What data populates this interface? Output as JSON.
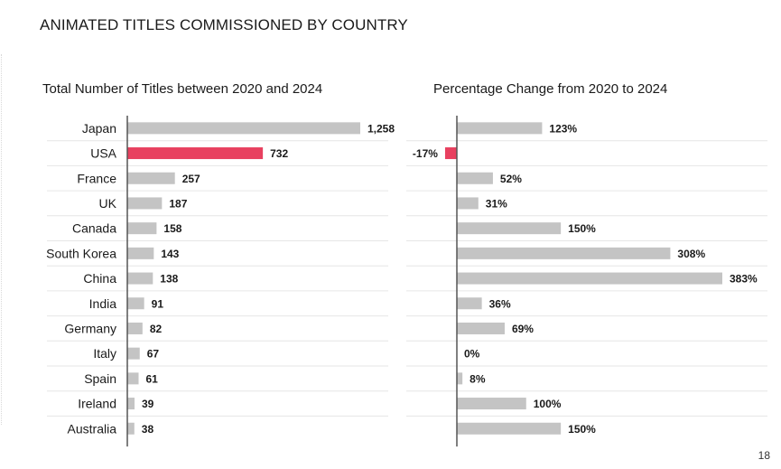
{
  "title": "ANIMATED TITLES COMMISSIONED BY COUNTRY",
  "page_number": "18",
  "colors": {
    "bar": "#c4c4c4",
    "highlight": "#e8405f",
    "axis": "#555555",
    "grid": "#e6e6e6"
  },
  "chart_data": [
    {
      "type": "bar",
      "orientation": "horizontal",
      "title": "Total Number of Titles between 2020 and 2024",
      "categories": [
        "Japan",
        "USA",
        "France",
        "UK",
        "Canada",
        "South Korea",
        "China",
        "India",
        "Germany",
        "Italy",
        "Spain",
        "Ireland",
        "Australia"
      ],
      "values": [
        1258,
        732,
        257,
        187,
        158,
        143,
        138,
        91,
        82,
        67,
        61,
        39,
        38
      ],
      "value_labels": [
        "1,258",
        "732",
        "257",
        "187",
        "158",
        "143",
        "138",
        "91",
        "82",
        "67",
        "61",
        "39",
        "38"
      ],
      "highlight": "USA",
      "xlim": [
        0,
        1400
      ]
    },
    {
      "type": "bar",
      "orientation": "horizontal",
      "title": "Percentage Change from 2020 to 2024",
      "categories": [
        "Japan",
        "USA",
        "France",
        "UK",
        "Canada",
        "South Korea",
        "China",
        "India",
        "Germany",
        "Italy",
        "Spain",
        "Ireland",
        "Australia"
      ],
      "values": [
        123,
        -17,
        52,
        31,
        150,
        308,
        383,
        36,
        69,
        0,
        8,
        100,
        150
      ],
      "value_labels": [
        "123%",
        "-17%",
        "52%",
        "31%",
        "150%",
        "308%",
        "383%",
        "36%",
        "69%",
        "0%",
        "8%",
        "100%",
        "150%"
      ],
      "highlight": "USA",
      "xlim": [
        -30,
        390
      ]
    }
  ]
}
